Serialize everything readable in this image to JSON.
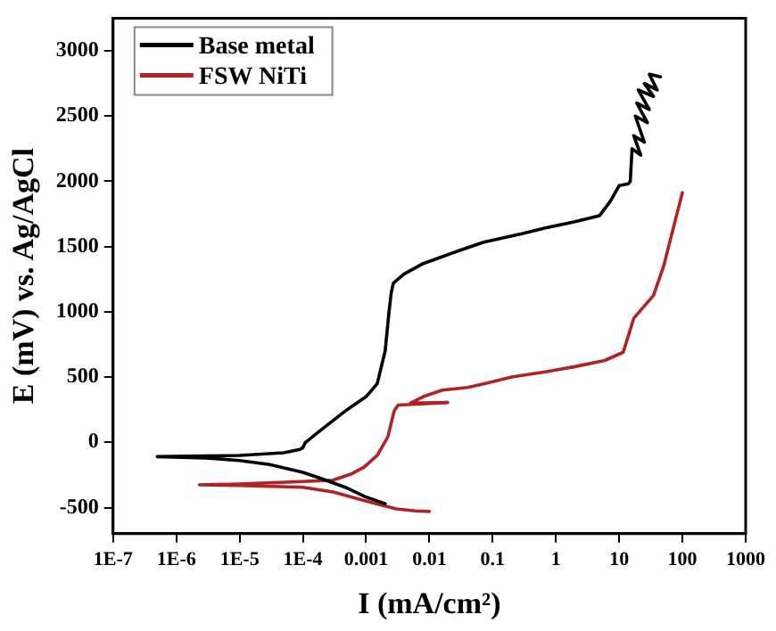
{
  "chart_data": {
    "type": "line",
    "xlabel": "I (mA/cm²)",
    "ylabel": "E (mV) vs. Ag/AgCl",
    "log": "x",
    "grid": false,
    "legend": "top left",
    "marker": "none",
    "line_style": "solid",
    "xlim": [
      1e-07,
      1000
    ],
    "ylim": [
      -700,
      3250
    ],
    "xticks": [
      {
        "value": 1e-07,
        "label": "1E-7"
      },
      {
        "value": 1e-06,
        "label": "1E-6"
      },
      {
        "value": 1e-05,
        "label": "1E-5"
      },
      {
        "value": 0.0001,
        "label": "1E-4"
      },
      0.001,
      0.01,
      0.1,
      1,
      10,
      100,
      1000
    ],
    "yticks": [
      -500,
      0,
      500,
      1000,
      1500,
      2000,
      2500,
      3000
    ],
    "series": [
      {
        "name": "Base metal",
        "color": "#000000",
        "x": [
          0.002,
          0.001,
          0.0005,
          0.0002,
          0.0001,
          3e-05,
          1e-05,
          3e-06,
          5e-07,
          3e-06,
          1e-05,
          5e-05,
          9e-05,
          0.0001,
          0.00011,
          0.0002,
          0.0005,
          0.001,
          0.0015,
          0.002,
          0.0023,
          0.0025,
          0.0027,
          0.004,
          0.008,
          0.03,
          0.072,
          0.3,
          0.68,
          2,
          4.9,
          7.2,
          10,
          14,
          15,
          16,
          22,
          17,
          25,
          18,
          28,
          19,
          30,
          20,
          35,
          25,
          40,
          30,
          45
        ],
        "values": [
          -470,
          -420,
          -350,
          -280,
          -230,
          -170,
          -140,
          -120,
          -110,
          -105,
          -100,
          -80,
          -55,
          -40,
          0,
          100,
          250,
          350,
          450,
          700,
          1000,
          1150,
          1221,
          1290,
          1370,
          1470,
          1533,
          1600,
          1642,
          1690,
          1737,
          1845,
          1967,
          1981,
          2000,
          2250,
          2200,
          2350,
          2300,
          2500,
          2450,
          2600,
          2550,
          2700,
          2650,
          2750,
          2700,
          2820,
          2800
        ]
      },
      {
        "name": "FSW NiTi",
        "color": "#b22222",
        "x": [
          0.01,
          0.006,
          0.003,
          0.001,
          0.0003,
          0.0001,
          1e-05,
          2.3e-06,
          1e-05,
          0.0001,
          0.0003,
          0.0006,
          0.00093,
          0.0015,
          0.0022,
          0.0027,
          0.0028,
          0.0032,
          0.0195,
          0.005,
          0.008,
          0.016,
          0.04,
          0.072,
          0.2,
          0.68,
          2,
          5.9,
          11.6,
          17,
          35,
          51,
          78,
          100
        ],
        "values": [
          -530,
          -525,
          -510,
          -450,
          -380,
          -345,
          -330,
          -326,
          -320,
          -300,
          -290,
          -240,
          -190,
          -100,
          40,
          217,
          244,
          285,
          305,
          300,
          350,
          400,
          420,
          448,
          500,
          540,
          580,
          627,
          690,
          950,
          1126,
          1357,
          1710,
          1913
        ]
      }
    ]
  }
}
